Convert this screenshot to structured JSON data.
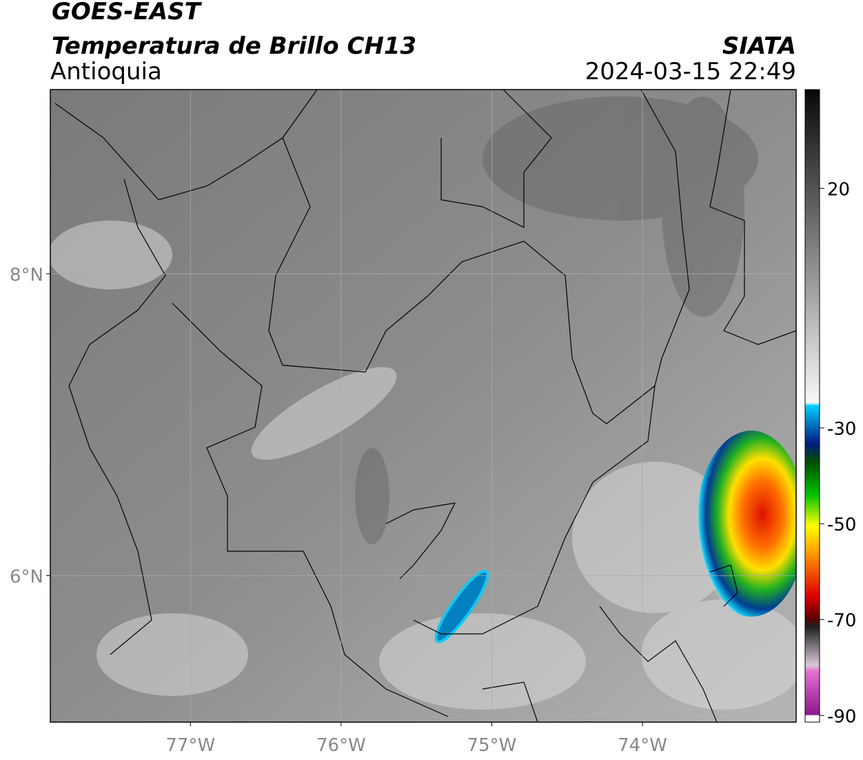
{
  "header": {
    "title": "GOES-EAST",
    "subtitle": "Temperatura de Brillo CH13",
    "region": "Antioquia",
    "source": "SIATA",
    "datetime": "2024-03-15 22:49"
  },
  "map": {
    "xlim": [
      -77.93,
      -72.98
    ],
    "ylim": [
      5.03,
      9.22
    ],
    "xticks": [
      {
        "value": -77,
        "label": "77°W"
      },
      {
        "value": -76,
        "label": "76°W"
      },
      {
        "value": -75,
        "label": "75°W"
      },
      {
        "value": -74,
        "label": "74°W"
      }
    ],
    "yticks": [
      {
        "value": 8,
        "label": "8°N"
      },
      {
        "value": 6,
        "label": "6°N"
      }
    ],
    "grid": true
  },
  "colorbar": {
    "lim": [
      -91.4,
      40.6
    ],
    "ticks": [
      20,
      -30,
      -50,
      -70,
      -90
    ]
  }
}
